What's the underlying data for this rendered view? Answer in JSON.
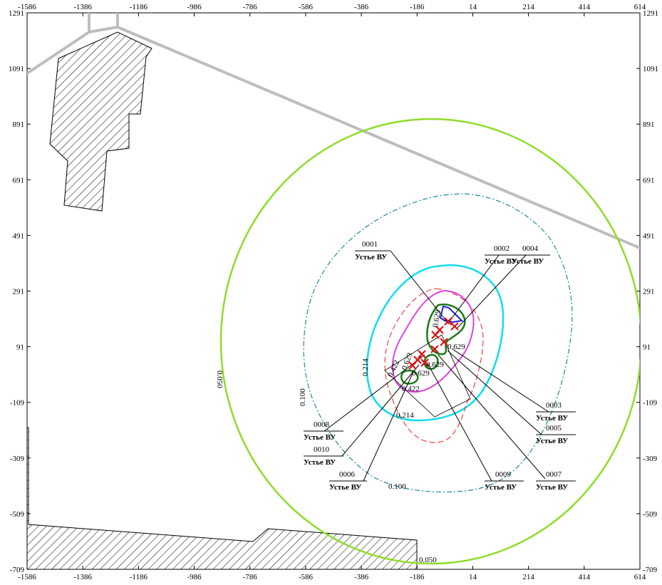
{
  "axes": {
    "x_ticks": [
      "-1586",
      "-1386",
      "-1186",
      "-986",
      "-786",
      "-586",
      "-386",
      "-186",
      "14",
      "214",
      "414",
      "614"
    ],
    "y_ticks": [
      "1291",
      "1091",
      "891",
      "691",
      "491",
      "291",
      "91",
      "-109",
      "-309",
      "-509",
      "-709"
    ]
  },
  "sources": [
    {
      "id": "0001",
      "name": "Устье ВУ"
    },
    {
      "id": "0002",
      "name": "Устье ВУ"
    },
    {
      "id": "0003",
      "name": "Устье ВУ"
    },
    {
      "id": "0004",
      "name": "Устье ВУ"
    },
    {
      "id": "0005",
      "name": "Устье ВУ"
    },
    {
      "id": "0006",
      "name": "Устье ВУ"
    },
    {
      "id": "0007",
      "name": "Устье ВУ"
    },
    {
      "id": "0008",
      "name": "Устье ВУ"
    },
    {
      "id": "0009",
      "name": "Устье ВУ"
    },
    {
      "id": "0010",
      "name": "Устье ВУ"
    }
  ],
  "isolines": [
    {
      "value": "0.050",
      "color": "#88dd22"
    },
    {
      "value": "0.100",
      "color": "#1a8a9a"
    },
    {
      "value": "0.214",
      "color": "#11ddee"
    },
    {
      "value": "0.422",
      "color": "#ee2222"
    },
    {
      "value": "0.629",
      "color": "#dd44dd"
    },
    {
      "value": "0.629",
      "color": "#1a7a1a"
    },
    {
      "value": "",
      "color": "#1f1fdd"
    }
  ],
  "iso_labels": {
    "v050_a": "0.050",
    "v050_b": "0.050",
    "v100_a": "0.100",
    "v100_b": "0.100",
    "v214_a": "0.214",
    "v214_b": "0.214",
    "v422_a": "0.422",
    "v422_b": "0.422",
    "v629_a": "0.629",
    "v629_b": "0.629",
    "v629_c": "0.629",
    "v629_d": "0.629",
    "v629_e": "0.629"
  }
}
